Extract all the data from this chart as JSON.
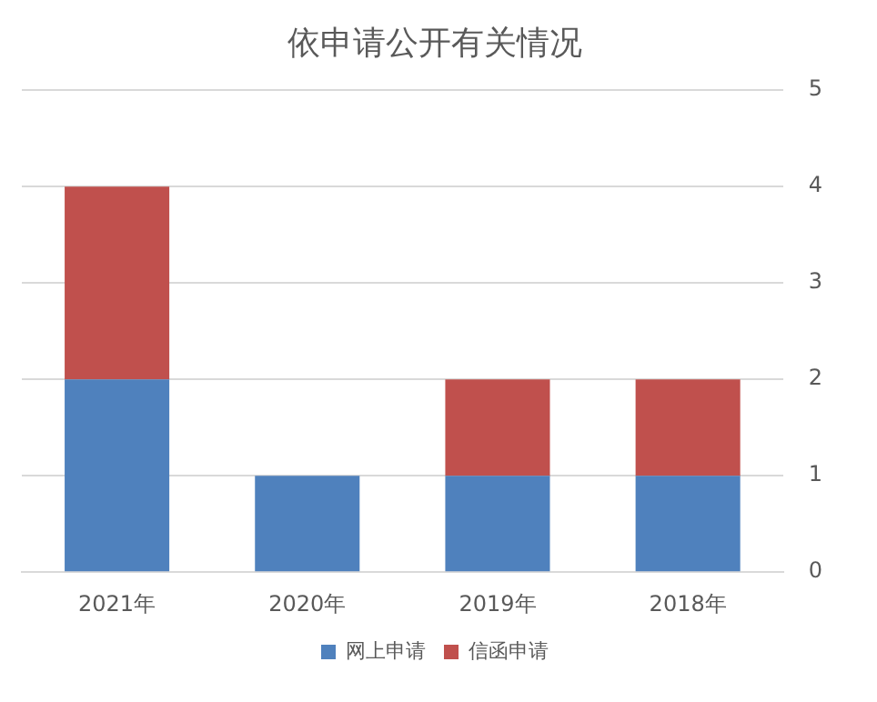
{
  "chart_data": {
    "type": "bar",
    "title": "依申请公开有关情况",
    "categories": [
      "2021年",
      "2020年",
      "2019年",
      "2018年"
    ],
    "series": [
      {
        "name": "网上申请",
        "color": "#4f81bd",
        "values": [
          2,
          1,
          1,
          1
        ]
      },
      {
        "name": "信函申请",
        "color": "#c0504d",
        "values": [
          2,
          0,
          1,
          1
        ]
      }
    ],
    "stacked": true,
    "ylim": [
      0,
      5
    ],
    "yticks": [
      0,
      1,
      2,
      3,
      4,
      5
    ],
    "grid": "y",
    "legend": "bottom"
  }
}
